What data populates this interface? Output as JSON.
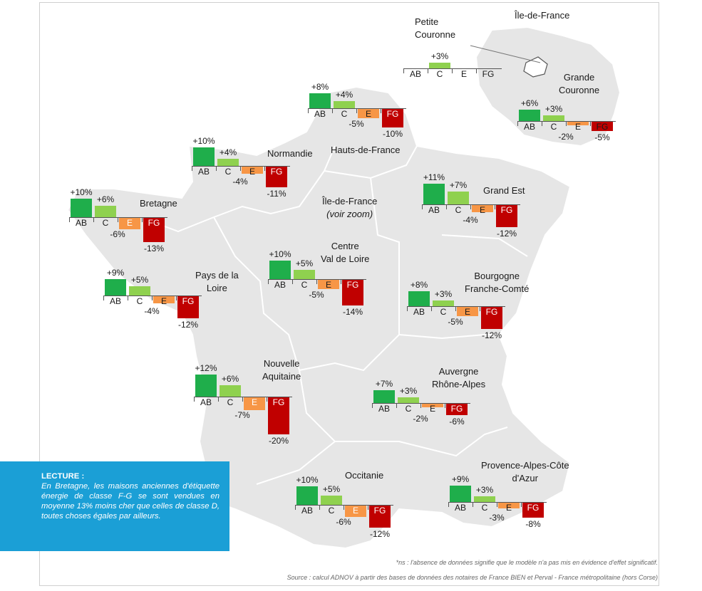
{
  "colors": {
    "AB": "#1fae4b",
    "C": "#8fd14f",
    "E": "#f79646",
    "FG": "#c00000",
    "land": "#e6e6e6",
    "border": "#ffffff",
    "lecture_bg": "#1b9fd6"
  },
  "labels": {
    "idf_corner": "Île-de-France",
    "petite_couronne": [
      "Petite",
      "Couronne"
    ],
    "grande_couronne": [
      "Grande",
      "Couronne"
    ],
    "hauts_de_france": "Hauts-de-France",
    "normandie": "Normandie",
    "bretagne": "Bretagne",
    "idf_center": "Île-de-France",
    "voir_zoom": "(voir zoom)",
    "grand_est": "Grand Est",
    "pays_de_la_loire": [
      "Pays de la",
      "Loire"
    ],
    "centre": [
      "Centre",
      "Val de Loire"
    ],
    "bourgogne": [
      "Bourgogne",
      "Franche-Comté"
    ],
    "nouvelle_aquitaine": [
      "Nouvelle",
      "Aquitaine"
    ],
    "auvergne": [
      "Auvergne",
      "Rhône-Alpes"
    ],
    "occitanie": "Occitanie",
    "paca": [
      "Provence-Alpes-Côte",
      "d'Azur"
    ]
  },
  "categories": [
    "AB",
    "C",
    "E",
    "FG"
  ],
  "regions": [
    {
      "id": "petite-couronne",
      "values": {
        "C": "+3%"
      }
    },
    {
      "id": "grande-couronne",
      "values": {
        "AB": "+6%",
        "C": "+3%",
        "E": "-2%",
        "FG": "-5%"
      }
    },
    {
      "id": "hauts-de-france",
      "values": {
        "AB": "+8%",
        "C": "+4%",
        "E": "-5%",
        "FG": "-10%"
      }
    },
    {
      "id": "normandie",
      "values": {
        "AB": "+10%",
        "C": "+4%",
        "E": "-4%",
        "FG": "-11%"
      }
    },
    {
      "id": "bretagne",
      "values": {
        "AB": "+10%",
        "C": "+6%",
        "E": "-6%",
        "FG": "-13%"
      }
    },
    {
      "id": "grand-est",
      "values": {
        "AB": "+11%",
        "C": "+7%",
        "E": "-4%",
        "FG": "-12%"
      }
    },
    {
      "id": "pays-de-la-loire",
      "values": {
        "AB": "+9%",
        "C": "+5%",
        "E": "-4%",
        "FG": "-12%"
      }
    },
    {
      "id": "centre-val-de-loire",
      "values": {
        "AB": "+10%",
        "C": "+5%",
        "E": "-5%",
        "FG": "-14%"
      }
    },
    {
      "id": "bourgogne-franche-comte",
      "values": {
        "AB": "+8%",
        "C": "+3%",
        "E": "-5%",
        "FG": "-12%"
      }
    },
    {
      "id": "nouvelle-aquitaine",
      "values": {
        "AB": "+12%",
        "C": "+6%",
        "E": "-7%",
        "FG": "-20%"
      }
    },
    {
      "id": "auvergne-rhone-alpes",
      "values": {
        "AB": "+7%",
        "C": "+3%",
        "E": "-2%",
        "FG": "-6%"
      }
    },
    {
      "id": "occitanie",
      "values": {
        "AB": "+10%",
        "C": "+5%",
        "E": "-6%",
        "FG": "-12%"
      }
    },
    {
      "id": "provence-alpes-cote-dazur",
      "values": {
        "AB": "+9%",
        "C": "+3%",
        "E": "-3%",
        "FG": "-8%"
      }
    }
  ],
  "lecture": {
    "title": "LECTURE :",
    "text": "En Bretagne, les maisons anciennes d'étiquette énergie de classe F-G se sont vendues en moyenne 13% moins cher que celles de classe D, toutes choses égales par ailleurs."
  },
  "footnotes": {
    "ns": "*ns : l'absence de données signifie que le modèle n'a pas mis en évidence d'effet significatif.",
    "source": "Source : calcul ADNOV à partir des bases de données des notaires de France BIEN et Perval - France métropolitaine (hors Corse)"
  }
}
